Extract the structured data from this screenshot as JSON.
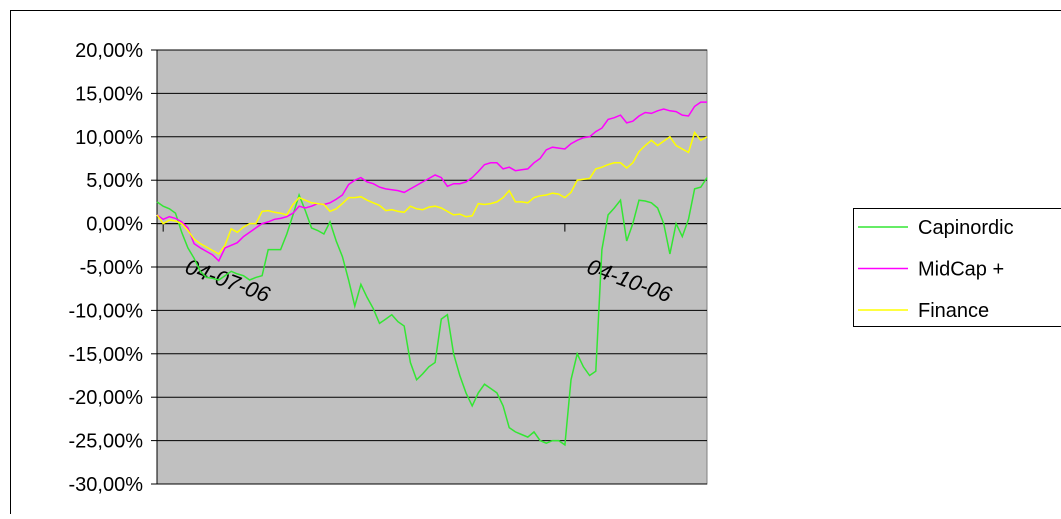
{
  "chart_data": {
    "type": "line",
    "categories": [
      null,
      "04-07-06",
      null,
      null,
      null,
      null,
      null,
      null,
      null,
      null,
      null,
      null,
      null,
      null,
      null,
      null,
      null,
      null,
      null,
      null,
      null,
      null,
      null,
      null,
      null,
      null,
      null,
      null,
      null,
      null,
      null,
      null,
      null,
      null,
      null,
      null,
      null,
      null,
      null,
      null,
      null,
      null,
      null,
      null,
      null,
      null,
      null,
      null,
      null,
      null,
      null,
      null,
      null,
      null,
      null,
      null,
      null,
      null,
      null,
      null,
      null,
      null,
      null,
      null,
      null,
      null,
      "04-10-06",
      null,
      null,
      null,
      null,
      null,
      null,
      null,
      null,
      null,
      null,
      null,
      null,
      null,
      null,
      null,
      null,
      null,
      null,
      null,
      null,
      null,
      null,
      null
    ],
    "series": [
      {
        "name": "Capinordic",
        "color": "#33e633",
        "values": [
          2.5,
          2.0,
          1.7,
          1.2,
          -1,
          -2.8,
          -4,
          -5.5,
          -6.2,
          -6.3,
          -6.5,
          -6,
          -5.5,
          -5.8,
          -6,
          -6.5,
          -6.2,
          -6,
          -3,
          -3,
          -3,
          -1.2,
          1,
          3.3,
          1.5,
          -0.5,
          -0.8,
          -1.2,
          0.2,
          -2,
          -3.8,
          -6.5,
          -9.5,
          -7,
          -8.5,
          -9.8,
          -11.5,
          -11,
          -10.5,
          -11.3,
          -11.8,
          -16,
          -18,
          -17.3,
          -16.5,
          -16,
          -11,
          -10.5,
          -15,
          -17.5,
          -19.5,
          -21,
          -19.5,
          -18.5,
          -19,
          -19.5,
          -21,
          -23.5,
          -24,
          -24.3,
          -24.6,
          -24,
          -25,
          -25.3,
          -25,
          -25,
          -25.5,
          -18,
          -15,
          -16.5,
          -17.5,
          -17,
          -3,
          1,
          1.8,
          2.7,
          -2,
          0,
          2.7,
          2.6,
          2.4,
          1.8,
          0,
          -3.5,
          0,
          -1.5,
          0.5,
          4,
          4.2,
          5.3
        ]
      },
      {
        "name": "MidCap +",
        "color": "#ff00ff",
        "values": [
          1.0,
          0.5,
          0.8,
          0.6,
          0.2,
          -0.5,
          -2.3,
          -2.8,
          -3.2,
          -3.6,
          -4.3,
          -2.8,
          -2.5,
          -2.2,
          -1.5,
          -1,
          -0.5,
          0,
          0.2,
          0.5,
          0.6,
          0.8,
          1.2,
          2,
          1.8,
          2,
          2.3,
          2.2,
          2.4,
          2.8,
          3.3,
          4.5,
          5,
          5.3,
          4.8,
          4.6,
          4.2,
          4,
          3.9,
          3.8,
          3.6,
          4,
          4.4,
          4.8,
          5.2,
          5.6,
          5.3,
          4.3,
          4.6,
          4.6,
          4.8,
          5.3,
          6,
          6.8,
          7,
          7,
          6.3,
          6.5,
          6.1,
          6.2,
          6.3,
          7,
          7.5,
          8.5,
          8.8,
          8.7,
          8.6,
          9.2,
          9.6,
          9.9,
          10,
          10.6,
          11,
          12,
          12.2,
          12.5,
          11.6,
          11.8,
          12.4,
          12.8,
          12.7,
          13,
          13.2,
          13,
          12.9,
          12.5,
          12.4,
          13.5,
          14,
          14
        ]
      },
      {
        "name": "Finance",
        "color": "#ffff00",
        "values": [
          1,
          0,
          0.4,
          0.3,
          0,
          -0.8,
          -1.8,
          -2.3,
          -2.7,
          -3.1,
          -3.5,
          -2.5,
          -0.6,
          -1,
          -0.4,
          0,
          0,
          1.4,
          1.5,
          1.3,
          1.2,
          1,
          2.2,
          3,
          2.7,
          2.4,
          2.3,
          2.2,
          1.4,
          1.7,
          2.3,
          3,
          3,
          3.1,
          2.7,
          2.4,
          2.1,
          1.5,
          1.6,
          1.4,
          1.3,
          2,
          1.7,
          1.6,
          1.9,
          2,
          1.8,
          1.4,
          1.0,
          1.1,
          0.8,
          0.9,
          2.3,
          2.2,
          2.3,
          2.5,
          3,
          3.8,
          2.5,
          2.5,
          2.4,
          3,
          3.2,
          3.3,
          3.5,
          3.4,
          3,
          3.6,
          5,
          5.1,
          5.2,
          6.3,
          6.5,
          6.8,
          7,
          7,
          6.4,
          7,
          8.3,
          9,
          9.6,
          9,
          9.5,
          10,
          9,
          8.6,
          8.2,
          10.5,
          9.6,
          10
        ]
      }
    ],
    "ylim": [
      -30,
      20
    ],
    "yticks": [
      {
        "value": -30,
        "label": "-30,00%"
      },
      {
        "value": -25,
        "label": "-25,00%"
      },
      {
        "value": -20,
        "label": "-20,00%"
      },
      {
        "value": -15,
        "label": "-15,00%"
      },
      {
        "value": -10,
        "label": "-10,00%"
      },
      {
        "value": -5,
        "label": "-5,00%"
      },
      {
        "value": 0,
        "label": "0,00%"
      },
      {
        "value": 5,
        "label": "5,00%"
      },
      {
        "value": 10,
        "label": "10,00%"
      },
      {
        "value": 15,
        "label": "15,00%"
      },
      {
        "value": 20,
        "label": "20,00%"
      }
    ],
    "grid": true,
    "legend": "right"
  }
}
